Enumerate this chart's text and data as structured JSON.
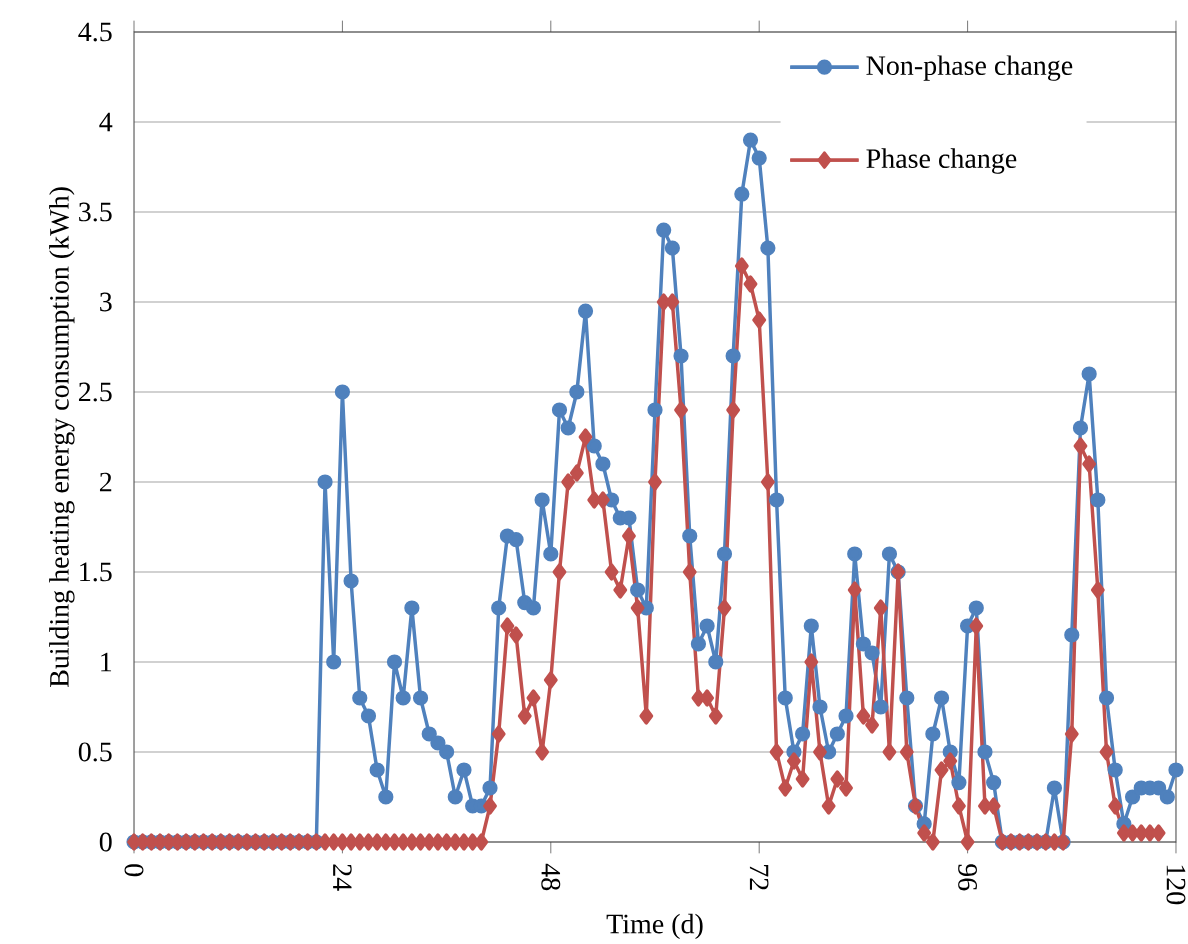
{
  "chart_data": {
    "type": "line",
    "xlabel": "Time (d)",
    "ylabel": "Building heating energy consumption (kWh)",
    "x": [
      0,
      1,
      2,
      3,
      4,
      5,
      6,
      7,
      8,
      9,
      10,
      11,
      12,
      13,
      14,
      15,
      16,
      17,
      18,
      19,
      20,
      21,
      22,
      23,
      24,
      25,
      26,
      27,
      28,
      29,
      30,
      31,
      32,
      33,
      34,
      35,
      36,
      37,
      38,
      39,
      40,
      41,
      42,
      43,
      44,
      45,
      46,
      47,
      48,
      49,
      50,
      51,
      52,
      53,
      54,
      55,
      56,
      57,
      58,
      59,
      60,
      61,
      62,
      63,
      64,
      65,
      66,
      67,
      68,
      69,
      70,
      71,
      72,
      73,
      74,
      75,
      76,
      77,
      78,
      79,
      80,
      81,
      82,
      83,
      84,
      85,
      86,
      87,
      88,
      89,
      90,
      91,
      92,
      93,
      94,
      95,
      96,
      97,
      98,
      99,
      100,
      101,
      102,
      103,
      104,
      105,
      106,
      107,
      108,
      109,
      110,
      111,
      112,
      113,
      114,
      115,
      116,
      117,
      118,
      119,
      120
    ],
    "series": [
      {
        "name": "Non-phase change",
        "color": "#4f81bd",
        "marker": "circle",
        "values": [
          0,
          0,
          0,
          0,
          0,
          0,
          0,
          0,
          0,
          0,
          0,
          0,
          0,
          0,
          0,
          0,
          0,
          0,
          0,
          0,
          0,
          0,
          2.0,
          1.0,
          2.5,
          1.45,
          0.8,
          0.7,
          0.4,
          0.25,
          1.0,
          0.8,
          1.3,
          0.8,
          0.6,
          0.55,
          0.5,
          0.25,
          0.4,
          0.2,
          0.2,
          0.3,
          1.3,
          1.7,
          1.68,
          1.33,
          1.3,
          1.9,
          1.6,
          2.4,
          2.3,
          2.5,
          2.95,
          2.2,
          2.1,
          1.9,
          1.8,
          1.8,
          1.4,
          1.3,
          2.4,
          3.4,
          3.3,
          2.7,
          1.7,
          1.1,
          1.2,
          1.0,
          1.6,
          2.7,
          3.6,
          3.9,
          3.8,
          3.3,
          1.9,
          0.8,
          0.5,
          0.6,
          1.2,
          0.75,
          0.5,
          0.6,
          0.7,
          1.6,
          1.1,
          1.05,
          0.75,
          1.6,
          1.5,
          0.8,
          0.2,
          0.1,
          0.6,
          0.8,
          0.5,
          0.33,
          1.2,
          1.3,
          0.5,
          0.33,
          0,
          0,
          0,
          0,
          0,
          0,
          0.3,
          0,
          1.15,
          2.3,
          2.6,
          1.9,
          0.8,
          0.4,
          0.1,
          0.25,
          0.3,
          0.3,
          0.3,
          0.25,
          0.4
        ]
      },
      {
        "name": "Phase change",
        "color": "#c0504d",
        "marker": "diamond",
        "values": [
          0,
          0,
          0,
          0,
          0,
          0,
          0,
          0,
          0,
          0,
          0,
          0,
          0,
          0,
          0,
          0,
          0,
          0,
          0,
          0,
          0,
          0,
          0,
          0,
          0,
          0,
          0,
          0,
          0,
          0,
          0,
          0,
          0,
          0,
          0,
          0,
          0,
          0,
          0,
          0,
          0,
          0.2,
          0.6,
          1.2,
          1.15,
          0.7,
          0.8,
          0.5,
          0.9,
          1.5,
          2.0,
          2.05,
          2.25,
          1.9,
          1.9,
          1.5,
          1.4,
          1.7,
          1.3,
          0.7,
          2.0,
          3.0,
          3.0,
          2.4,
          1.5,
          0.8,
          0.8,
          0.7,
          1.3,
          2.4,
          3.2,
          3.1,
          2.9,
          2.0,
          0.5,
          0.3,
          0.45,
          0.35,
          1.0,
          0.5,
          0.2,
          0.35,
          0.3,
          1.4,
          0.7,
          0.65,
          1.3,
          0.5,
          1.5,
          0.5,
          0.2,
          0.05,
          0,
          0.4,
          0.45,
          0.2,
          0,
          1.2,
          0.2,
          0.2,
          0,
          0,
          0,
          0,
          0,
          0,
          0,
          0,
          0.6,
          2.2,
          2.1,
          1.4,
          0.5,
          0.2,
          0.05,
          0.05,
          0.05,
          0.05,
          0.05,
          null,
          null
        ]
      }
    ],
    "xlim": [
      0,
      120
    ],
    "xticks": [
      0,
      24,
      48,
      72,
      96,
      120
    ],
    "ylim": [
      0,
      4.5
    ],
    "yticks": [
      0,
      0.5,
      1,
      1.5,
      2,
      2.5,
      3,
      3.5,
      4,
      4.5
    ],
    "grid": "y",
    "legend": "top right"
  }
}
